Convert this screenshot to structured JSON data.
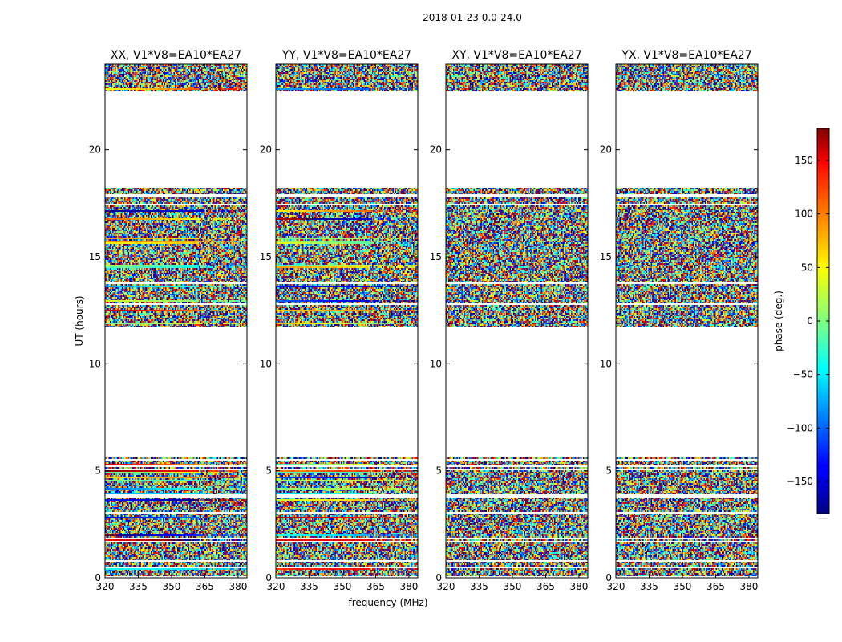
{
  "chart_data": {
    "type": "heatmap",
    "title": "2018-01-23 0.0-24.0",
    "xlabel": "frequency (MHz)",
    "ylabel": "UT (hours)",
    "xlim": [
      320,
      384
    ],
    "ylim": [
      0,
      24
    ],
    "x_ticks": [
      "320",
      "335",
      "350",
      "365",
      "380"
    ],
    "x_tick_values": [
      320,
      335,
      350,
      365,
      380
    ],
    "y_ticks": [
      "0",
      "5",
      "10",
      "15",
      "20"
    ],
    "y_tick_values": [
      0,
      5,
      10,
      15,
      20
    ],
    "panels": [
      {
        "title": "XX, V1*V8=EA10*EA27",
        "kind": "XX"
      },
      {
        "title": "YY, V1*V8=EA10*EA27",
        "kind": "YY"
      },
      {
        "title": "XY, V1*V8=EA10*EA27",
        "kind": "XY"
      },
      {
        "title": "YX, V1*V8=EA10*EA27",
        "kind": "YX"
      }
    ],
    "data_blocks_ut": [
      [
        0.0,
        5.6
      ],
      [
        11.7,
        18.2
      ],
      [
        22.7,
        24.0
      ]
    ],
    "colorbar": {
      "label": "phase (deg.)",
      "range": [
        -180,
        180
      ],
      "ticks": [
        "150",
        "100",
        "50",
        "0",
        "−50",
        "−100",
        "−150"
      ],
      "tick_values": [
        150,
        100,
        50,
        0,
        -50,
        -100,
        -150
      ],
      "colormap": "jet",
      "extra": "......"
    }
  }
}
